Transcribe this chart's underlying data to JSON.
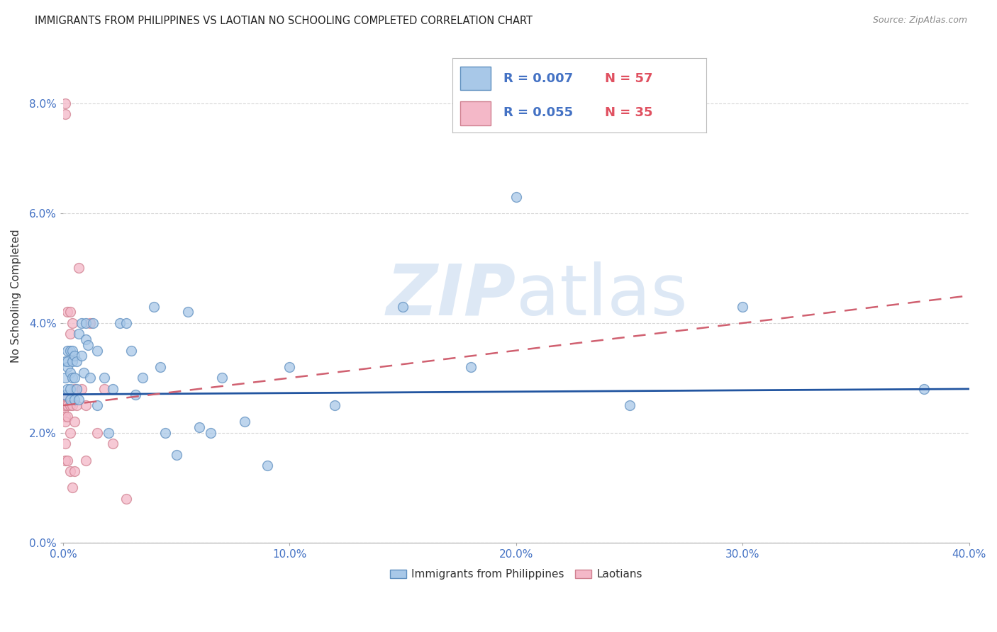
{
  "title": "IMMIGRANTS FROM PHILIPPINES VS LAOTIAN NO SCHOOLING COMPLETED CORRELATION CHART",
  "source": "Source: ZipAtlas.com",
  "ylabel": "No Schooling Completed",
  "legend_labels": [
    "Immigrants from Philippines",
    "Laotians"
  ],
  "blue_r": "R = 0.007",
  "blue_n": "N = 57",
  "pink_r": "R = 0.055",
  "pink_n": "N = 35",
  "blue_color": "#a8c8e8",
  "pink_color": "#f4b8c8",
  "blue_edge_color": "#6090c0",
  "pink_edge_color": "#d08090",
  "blue_line_color": "#2255a0",
  "pink_line_color": "#d06070",
  "watermark_color": "#dde8f5",
  "xlim": [
    0.0,
    0.4
  ],
  "ylim": [
    0.0,
    0.09
  ],
  "yticks": [
    0.0,
    0.02,
    0.04,
    0.06,
    0.08
  ],
  "xticks": [
    0.0,
    0.1,
    0.2,
    0.3,
    0.4
  ],
  "blue_x": [
    0.001,
    0.001,
    0.001,
    0.002,
    0.002,
    0.002,
    0.002,
    0.003,
    0.003,
    0.003,
    0.003,
    0.004,
    0.004,
    0.004,
    0.005,
    0.005,
    0.005,
    0.006,
    0.006,
    0.007,
    0.007,
    0.008,
    0.008,
    0.009,
    0.01,
    0.01,
    0.011,
    0.012,
    0.013,
    0.015,
    0.015,
    0.018,
    0.02,
    0.022,
    0.025,
    0.028,
    0.03,
    0.032,
    0.035,
    0.04,
    0.043,
    0.045,
    0.05,
    0.055,
    0.06,
    0.065,
    0.07,
    0.08,
    0.09,
    0.1,
    0.12,
    0.15,
    0.18,
    0.2,
    0.25,
    0.3,
    0.38
  ],
  "blue_y": [
    0.033,
    0.03,
    0.027,
    0.035,
    0.032,
    0.028,
    0.033,
    0.035,
    0.031,
    0.028,
    0.026,
    0.033,
    0.03,
    0.035,
    0.034,
    0.03,
    0.026,
    0.033,
    0.028,
    0.038,
    0.026,
    0.04,
    0.034,
    0.031,
    0.04,
    0.037,
    0.036,
    0.03,
    0.04,
    0.035,
    0.025,
    0.03,
    0.02,
    0.028,
    0.04,
    0.04,
    0.035,
    0.027,
    0.03,
    0.043,
    0.032,
    0.02,
    0.016,
    0.042,
    0.021,
    0.02,
    0.03,
    0.022,
    0.014,
    0.032,
    0.025,
    0.043,
    0.032,
    0.063,
    0.025,
    0.043,
    0.028
  ],
  "pink_x": [
    0.0,
    0.0,
    0.0,
    0.001,
    0.001,
    0.001,
    0.001,
    0.001,
    0.001,
    0.001,
    0.002,
    0.002,
    0.002,
    0.002,
    0.003,
    0.003,
    0.003,
    0.003,
    0.003,
    0.004,
    0.004,
    0.004,
    0.005,
    0.005,
    0.005,
    0.006,
    0.007,
    0.008,
    0.01,
    0.01,
    0.012,
    0.015,
    0.018,
    0.022,
    0.028
  ],
  "pink_y": [
    0.027,
    0.025,
    0.024,
    0.08,
    0.078,
    0.025,
    0.023,
    0.022,
    0.018,
    0.015,
    0.042,
    0.025,
    0.023,
    0.015,
    0.042,
    0.038,
    0.025,
    0.02,
    0.013,
    0.04,
    0.025,
    0.01,
    0.028,
    0.022,
    0.013,
    0.025,
    0.05,
    0.028,
    0.025,
    0.015,
    0.04,
    0.02,
    0.028,
    0.018,
    0.008
  ],
  "blue_marker_size": 100,
  "pink_marker_size": 100,
  "grid_color": "#cccccc",
  "background_color": "#ffffff",
  "blue_trendline_y0": 0.027,
  "blue_trendline_y1": 0.028,
  "pink_trendline_y0": 0.025,
  "pink_trendline_y1": 0.045
}
